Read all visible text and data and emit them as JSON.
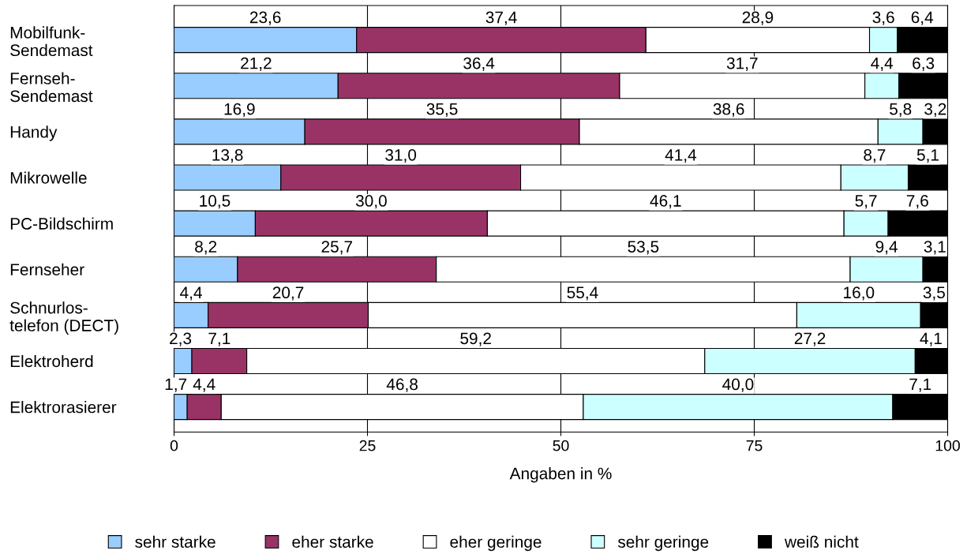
{
  "chart_data": {
    "type": "bar",
    "orientation": "horizontal",
    "stacked": true,
    "xlabel": "Angaben in %",
    "xlim": [
      0,
      100
    ],
    "xticks": [
      0,
      25,
      50,
      75,
      100
    ],
    "grid": "x",
    "legend": "bottom",
    "categories": [
      "Mobilfunk-\nSendemast",
      "Fernseh-\nSendemast",
      "Handy",
      "Mikrowelle",
      "PC-Bildschirm",
      "Fernseher",
      "Schnurlos-\ntelefon (DECT)",
      "Elektroherd",
      "Elektrorasierer"
    ],
    "series": [
      {
        "name": "sehr starke",
        "color": "#99ccff",
        "values": [
          23.6,
          21.2,
          16.9,
          13.8,
          10.5,
          8.2,
          4.4,
          2.3,
          1.7
        ],
        "value_labels": [
          "23,6",
          "21,2",
          "16,9",
          "13,8",
          "10,5",
          "8,2",
          "4,4",
          "2,3",
          "1,7"
        ]
      },
      {
        "name": "eher starke",
        "color": "#993366",
        "values": [
          37.4,
          36.4,
          35.5,
          31.0,
          30.0,
          25.7,
          20.7,
          7.1,
          4.4
        ],
        "value_labels": [
          "37,4",
          "36,4",
          "35,5",
          "31,0",
          "30,0",
          "25,7",
          "20,7",
          "7,1",
          "4,4"
        ]
      },
      {
        "name": "eher geringe",
        "color": "#ffffff",
        "values": [
          28.9,
          31.7,
          38.6,
          41.4,
          46.1,
          53.5,
          55.4,
          59.2,
          46.8
        ],
        "value_labels": [
          "28,9",
          "31,7",
          "38,6",
          "41,4",
          "46,1",
          "53,5",
          "55,4",
          "59,2",
          "46,8"
        ]
      },
      {
        "name": "sehr geringe",
        "color": "#ccffff",
        "values": [
          3.6,
          4.4,
          5.8,
          8.7,
          5.7,
          9.4,
          16.0,
          27.2,
          40.0
        ],
        "value_labels": [
          "3,6",
          "4,4",
          "5,8",
          "8,7",
          "5,7",
          "9,4",
          "16,0",
          "27,2",
          "40,0"
        ]
      },
      {
        "name": "weiß nicht",
        "color": "#000000",
        "values": [
          6.4,
          6.3,
          3.2,
          5.1,
          7.6,
          3.1,
          3.5,
          4.1,
          7.1
        ],
        "value_labels": [
          "6,4",
          "6,3",
          "3,2",
          "5,1",
          "7,6",
          "3,1",
          "3,5",
          "4,1",
          "7,1"
        ]
      }
    ]
  }
}
